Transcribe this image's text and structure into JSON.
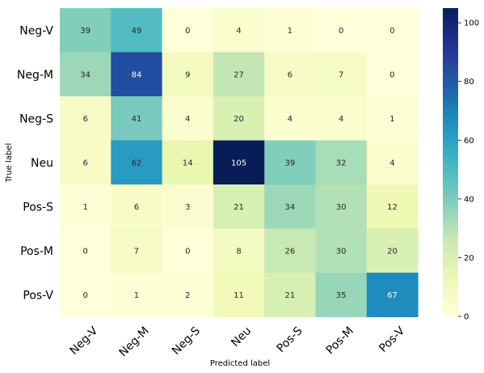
{
  "chart_data": {
    "type": "heatmap",
    "title": "",
    "xlabel": "Predicted label",
    "ylabel": "True label",
    "x_categories": [
      "Neg-V",
      "Neg-M",
      "Neg-S",
      "Neu",
      "Pos-S",
      "Pos-M",
      "Pos-V"
    ],
    "y_categories": [
      "Neg-V",
      "Neg-M",
      "Neg-S",
      "Neu",
      "Pos-S",
      "Pos-M",
      "Pos-V"
    ],
    "values": [
      [
        39,
        49,
        0,
        4,
        1,
        0,
        0
      ],
      [
        34,
        84,
        9,
        27,
        6,
        7,
        0
      ],
      [
        6,
        41,
        4,
        20,
        4,
        4,
        1
      ],
      [
        6,
        62,
        14,
        105,
        39,
        32,
        4
      ],
      [
        1,
        6,
        3,
        21,
        34,
        30,
        12
      ],
      [
        0,
        7,
        0,
        8,
        26,
        30,
        20
      ],
      [
        0,
        1,
        2,
        11,
        21,
        35,
        67
      ]
    ],
    "colormap": "YlGnBu",
    "colorbar": {
      "range": [
        0,
        105
      ],
      "ticks": [
        0,
        20,
        40,
        60,
        80,
        100
      ]
    }
  }
}
